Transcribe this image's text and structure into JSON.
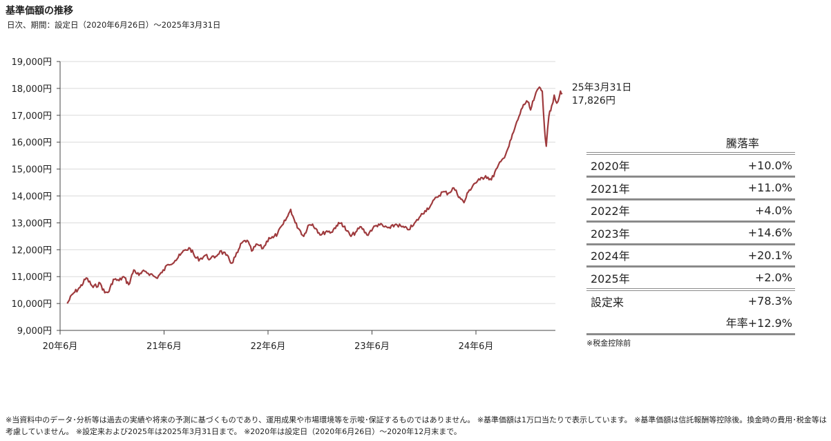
{
  "title": "基準価額の推移",
  "subtitle": "日次、期間：設定日（2020年6月26日）〜2025年3月31日",
  "chart_data": {
    "type": "line",
    "y_ticks": [
      "19,000円",
      "18,000円",
      "17,000円",
      "16,000円",
      "15,000円",
      "14,000円",
      "13,000円",
      "12,000円",
      "11,000円",
      "10,000円",
      "9,000円"
    ],
    "ylim": [
      9000,
      19000
    ],
    "x_ticks": [
      "20年6月",
      "21年6月",
      "22年6月",
      "23年6月",
      "24年6月"
    ],
    "x_range": [
      "2020-06-26",
      "2025-03-31"
    ],
    "grid": true,
    "line_color": "#9e3a3d",
    "series": [
      {
        "values": [
          [
            "2020-06-26",
            10000
          ],
          [
            "2020-07-15",
            10350
          ],
          [
            "2020-08-10",
            10600
          ],
          [
            "2020-09-01",
            10950
          ],
          [
            "2020-09-25",
            10600
          ],
          [
            "2020-10-20",
            10750
          ],
          [
            "2020-11-05",
            10400
          ],
          [
            "2020-11-20",
            10450
          ],
          [
            "2020-12-05",
            10900
          ],
          [
            "2020-12-25",
            10850
          ],
          [
            "2021-01-10",
            11000
          ],
          [
            "2021-01-28",
            10700
          ],
          [
            "2021-02-15",
            11250
          ],
          [
            "2021-03-05",
            11050
          ],
          [
            "2021-03-25",
            11200
          ],
          [
            "2021-04-15",
            11100
          ],
          [
            "2021-05-05",
            10950
          ],
          [
            "2021-05-25",
            11150
          ],
          [
            "2021-06-15",
            11450
          ],
          [
            "2021-07-10",
            11600
          ],
          [
            "2021-07-28",
            11800
          ],
          [
            "2021-08-15",
            12000
          ],
          [
            "2021-09-01",
            12050
          ],
          [
            "2021-09-20",
            11700
          ],
          [
            "2021-10-05",
            11650
          ],
          [
            "2021-10-25",
            11800
          ],
          [
            "2021-11-10",
            11650
          ],
          [
            "2021-11-30",
            11750
          ],
          [
            "2021-12-15",
            11950
          ],
          [
            "2022-01-05",
            11800
          ],
          [
            "2022-01-25",
            11500
          ],
          [
            "2022-02-15",
            11900
          ],
          [
            "2022-03-01",
            12250
          ],
          [
            "2022-03-20",
            12350
          ],
          [
            "2022-04-05",
            11950
          ],
          [
            "2022-04-25",
            12200
          ],
          [
            "2022-05-15",
            12050
          ],
          [
            "2022-06-05",
            12450
          ],
          [
            "2022-06-20",
            12450
          ],
          [
            "2022-07-05",
            12600
          ],
          [
            "2022-07-25",
            12950
          ],
          [
            "2022-08-10",
            13250
          ],
          [
            "2022-08-20",
            13500
          ],
          [
            "2022-09-05",
            13000
          ],
          [
            "2022-09-20",
            12750
          ],
          [
            "2022-10-05",
            12500
          ],
          [
            "2022-10-20",
            12900
          ],
          [
            "2022-11-05",
            12950
          ],
          [
            "2022-11-20",
            12750
          ],
          [
            "2022-12-05",
            12550
          ],
          [
            "2022-12-25",
            12700
          ],
          [
            "2023-01-10",
            12650
          ],
          [
            "2023-01-28",
            12900
          ],
          [
            "2023-02-15",
            13000
          ],
          [
            "2023-03-05",
            12700
          ],
          [
            "2023-03-20",
            12500
          ],
          [
            "2023-04-05",
            12650
          ],
          [
            "2023-04-25",
            12850
          ],
          [
            "2023-05-15",
            12550
          ],
          [
            "2023-06-05",
            12800
          ],
          [
            "2023-06-25",
            12950
          ],
          [
            "2023-07-15",
            12850
          ],
          [
            "2023-08-05",
            12800
          ],
          [
            "2023-08-25",
            12950
          ],
          [
            "2023-09-15",
            12850
          ],
          [
            "2023-10-05",
            12750
          ],
          [
            "2023-10-25",
            12900
          ],
          [
            "2023-11-15",
            13200
          ],
          [
            "2023-12-05",
            13450
          ],
          [
            "2023-12-25",
            13650
          ],
          [
            "2024-01-15",
            13950
          ],
          [
            "2024-02-05",
            14150
          ],
          [
            "2024-02-25",
            14100
          ],
          [
            "2024-03-15",
            14300
          ],
          [
            "2024-04-05",
            13950
          ],
          [
            "2024-04-20",
            13750
          ],
          [
            "2024-05-05",
            14150
          ],
          [
            "2024-05-25",
            14450
          ],
          [
            "2024-06-15",
            14600
          ],
          [
            "2024-07-05",
            14750
          ],
          [
            "2024-07-25",
            14600
          ],
          [
            "2024-08-15",
            15050
          ],
          [
            "2024-09-05",
            15400
          ],
          [
            "2024-09-25",
            15850
          ],
          [
            "2024-10-15",
            16500
          ],
          [
            "2024-10-30",
            16950
          ],
          [
            "2024-11-15",
            17400
          ],
          [
            "2024-11-30",
            17500
          ],
          [
            "2024-12-10",
            17200
          ],
          [
            "2024-12-25",
            17700
          ],
          [
            "2025-01-10",
            18050
          ],
          [
            "2025-01-20",
            17900
          ],
          [
            "2025-01-28",
            16500
          ],
          [
            "2025-02-03",
            15850
          ],
          [
            "2025-02-12",
            16950
          ],
          [
            "2025-02-22",
            17350
          ],
          [
            "2025-03-03",
            17750
          ],
          [
            "2025-03-12",
            17450
          ],
          [
            "2025-03-20",
            17650
          ],
          [
            "2025-03-25",
            17900
          ],
          [
            "2025-03-31",
            17826
          ]
        ]
      }
    ],
    "end_label": {
      "date": "25年3月31日",
      "value": "17,826円"
    }
  },
  "performance": {
    "header": "騰落率",
    "rows": [
      {
        "label": "2020年",
        "value": "+10.0%"
      },
      {
        "label": "2021年",
        "value": "+11.0%"
      },
      {
        "label": "2022年",
        "value": "+4.0%"
      },
      {
        "label": "2023年",
        "value": "+14.6%"
      },
      {
        "label": "2024年",
        "value": "+20.1%"
      },
      {
        "label": "2025年",
        "value": "+2.0%"
      }
    ],
    "since_label": "設定来",
    "since_value": "+78.3%",
    "annual_label": "年率+12.9%",
    "note": "※税金控除前"
  },
  "footnote": "※当資料中のデータ･分析等は過去の実績や将来の予測に基づくものであり、運用成果や市場環境等を示唆･保証するものではありません。 ※基準価額は1万口当たりで表示しています。 ※基準価額は信託報酬等控除後。換金時の費用･税金等は考慮していません。 ※設定来および2025年は2025年3月31日まで。 ※2020年は設定日（2020年6月26日）〜2020年12月末まで。"
}
